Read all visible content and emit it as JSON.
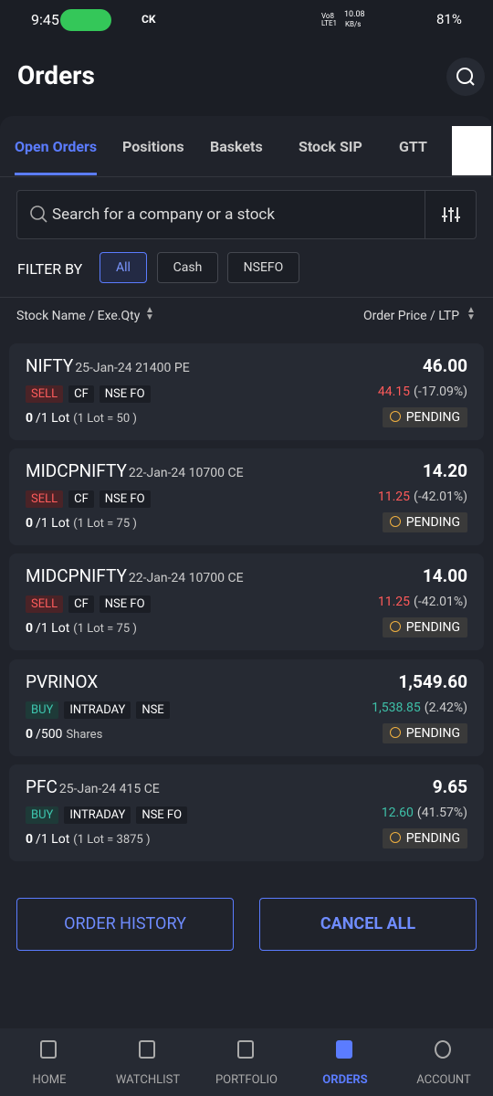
{
  "status_bar": {
    "time": "9:45",
    "icons": "CK",
    "network": "Vo8 LTE1",
    "speed": "10.08",
    "speed_unit": "KB/s",
    "battery": "81%"
  },
  "header": {
    "title": "Orders"
  },
  "tabs": [
    "Open Orders",
    "Positions",
    "Baskets",
    "Stock SIP",
    "GTT"
  ],
  "search": {
    "placeholder": "Search for a company or a stock"
  },
  "filter": {
    "label": "FILTER BY",
    "options": [
      "All",
      "Cash",
      "NSEFO"
    ]
  },
  "columns": {
    "left": "Stock Name / Exe.Qty",
    "right": "Order Price / LTP"
  },
  "orders": [
    {
      "name": "NIFTY",
      "detail": "25-Jan-24 21400 PE",
      "side": "SELL",
      "tags": [
        "CF",
        "NSE FO"
      ],
      "qty": "0",
      "total": "/1 Lot",
      "note": "(1 Lot = 50 )",
      "price": "46.00",
      "ltp": "44.15",
      "change": "(-17.09%)",
      "status": "PENDING"
    },
    {
      "name": "MIDCPNIFTY",
      "detail": "22-Jan-24 10700 CE",
      "side": "SELL",
      "tags": [
        "CF",
        "NSE FO"
      ],
      "qty": "0",
      "total": "/1 Lot",
      "note": "(1 Lot = 75 )",
      "price": "14.20",
      "ltp": "11.25",
      "change": "(-42.01%)",
      "status": "PENDING"
    },
    {
      "name": "MIDCPNIFTY",
      "detail": "22-Jan-24 10700 CE",
      "side": "SELL",
      "tags": [
        "CF",
        "NSE FO"
      ],
      "qty": "0",
      "total": "/1 Lot",
      "note": "(1 Lot = 75 )",
      "price": "14.00",
      "ltp": "11.25",
      "change": "(-42.01%)",
      "status": "PENDING"
    },
    {
      "name": "PVRINOX",
      "side": "BUY",
      "tags": [
        "INTRADAY",
        "NSE"
      ],
      "qty": "0",
      "total": "/500",
      "note": "Shares",
      "price": "1,549.60",
      "ltp": "1,538.85",
      "change": "(2.42%)",
      "status": "PENDING"
    },
    {
      "name": "PFC",
      "detail": "25-Jan-24 415 CE",
      "side": "BUY",
      "tags": [
        "INTRADAY",
        "NSE FO"
      ],
      "qty": "0",
      "total": "/1 Lot",
      "note": "(1 Lot = 3875 )",
      "price": "9.65",
      "ltp": "12.60",
      "change": "(41.57%)",
      "status": "PENDING"
    }
  ],
  "buttons": [
    "ORDER HISTORY",
    "CANCEL ALL"
  ],
  "nav": [
    "HOME",
    "WATCHLIST",
    "PORTFOLIO",
    "ORDERS",
    "ACCOUNT"
  ]
}
